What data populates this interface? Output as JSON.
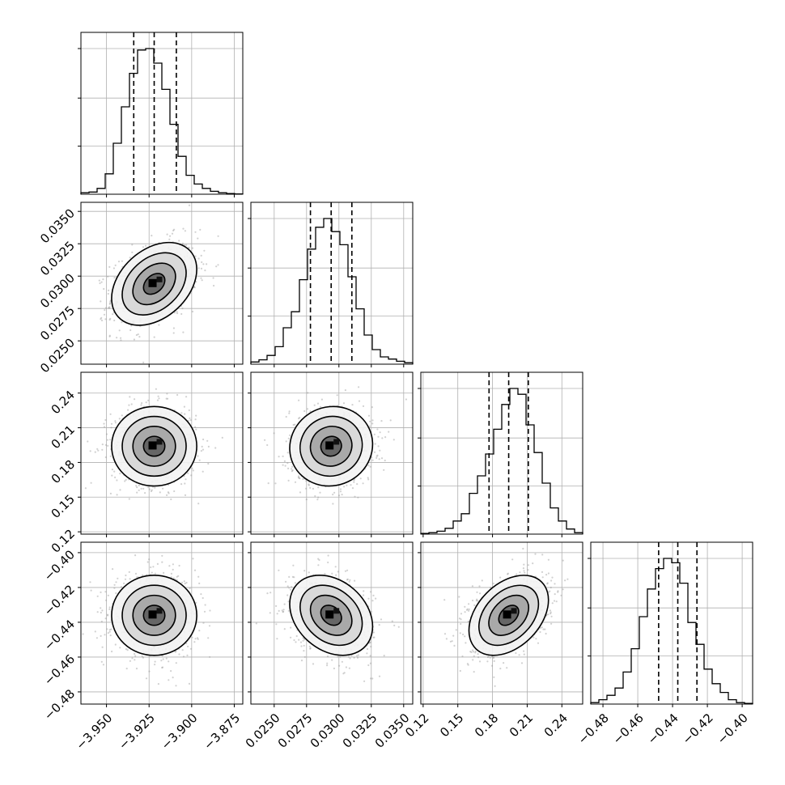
{
  "chart_data": {
    "type": "corner",
    "title": "",
    "grid": true,
    "params": [
      {
        "range": [
          -3.965,
          -3.87
        ],
        "ticks": [
          -3.95,
          -3.925,
          -3.9,
          -3.875
        ],
        "tick_labels": [
          "−3.950",
          "−3.925",
          "−3.900",
          "−3.875"
        ],
        "mean": -3.922,
        "sd": 0.0125,
        "quantiles": [
          -3.934,
          -3.922,
          -3.909
        ]
      },
      {
        "range": [
          0.0232,
          0.0357
        ],
        "ticks": [
          0.025,
          0.0275,
          0.03,
          0.0325,
          0.035
        ],
        "tick_labels": [
          "0.0250",
          "0.0275",
          "0.0300",
          "0.0325",
          "0.0350"
        ],
        "mean": 0.0294,
        "sd": 0.0016,
        "quantiles": [
          0.0278,
          0.0294,
          0.031
        ]
      },
      {
        "range": [
          0.118,
          0.258
        ],
        "ticks": [
          0.12,
          0.15,
          0.18,
          0.21,
          0.24
        ],
        "tick_labels": [
          "0.12",
          "0.15",
          "0.18",
          "0.21",
          "0.24"
        ],
        "mean": 0.194,
        "sd": 0.0172,
        "quantiles": [
          0.177,
          0.194,
          0.211
        ]
      },
      {
        "range": [
          -0.487,
          -0.394
        ],
        "ticks": [
          -0.48,
          -0.46,
          -0.44,
          -0.42,
          -0.4
        ],
        "tick_labels": [
          "−0.48",
          "−0.46",
          "−0.44",
          "−0.42",
          "−0.40"
        ],
        "mean": -0.436,
        "sd": 0.0115,
        "quantiles": [
          -0.448,
          -0.437,
          -0.426
        ]
      }
    ],
    "histograms": [
      {
        "panel": "1-1",
        "bins": 20,
        "counts": [
          0.01,
          0.015,
          0.04,
          0.14,
          0.35,
          0.6,
          0.83,
          0.99,
          1.0,
          0.9,
          0.72,
          0.48,
          0.26,
          0.13,
          0.07,
          0.04,
          0.02,
          0.01,
          0.005,
          0.002
        ],
        "hist_ticks": [
          0.33,
          0.66,
          1.0
        ]
      },
      {
        "panel": "2-2",
        "bins": 20,
        "counts": [
          0.015,
          0.03,
          0.06,
          0.12,
          0.25,
          0.36,
          0.58,
          0.79,
          0.94,
          1.0,
          0.91,
          0.82,
          0.6,
          0.38,
          0.2,
          0.1,
          0.05,
          0.035,
          0.02,
          0.01
        ],
        "hist_ticks": [
          0.33,
          0.66,
          1.0
        ]
      },
      {
        "panel": "3-3",
        "bins": 20,
        "counts": [
          0.005,
          0.01,
          0.02,
          0.04,
          0.09,
          0.14,
          0.28,
          0.4,
          0.55,
          0.72,
          0.89,
          1.0,
          0.96,
          0.75,
          0.56,
          0.35,
          0.18,
          0.09,
          0.035,
          0.01
        ],
        "hist_ticks": [
          0.33,
          0.66,
          1.0
        ]
      },
      {
        "panel": "4-4",
        "bins": 20,
        "counts": [
          0.01,
          0.03,
          0.06,
          0.11,
          0.22,
          0.38,
          0.6,
          0.79,
          0.93,
          1.0,
          0.97,
          0.83,
          0.56,
          0.41,
          0.24,
          0.14,
          0.08,
          0.03,
          0.01,
          0.005
        ],
        "hist_ticks": [
          0.33,
          0.66,
          1.0
        ]
      }
    ],
    "pairs": [
      {
        "x": 0,
        "y": 1,
        "corr": 0.35
      },
      {
        "x": 0,
        "y": 2,
        "corr": 0.0
      },
      {
        "x": 1,
        "y": 2,
        "corr": 0.05
      },
      {
        "x": 0,
        "y": 3,
        "corr": 0.0
      },
      {
        "x": 1,
        "y": 3,
        "corr": -0.28
      },
      {
        "x": 2,
        "y": 3,
        "corr": 0.38
      }
    ],
    "contour_levels_sigma": [
      0.5,
      1.0,
      1.5,
      2.0
    ]
  }
}
